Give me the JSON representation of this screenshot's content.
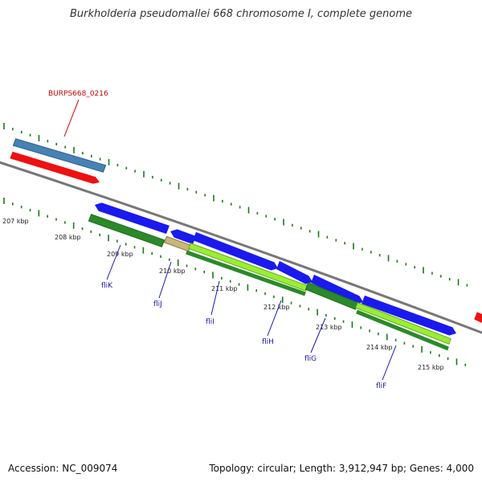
{
  "title": "Burkholderia pseudomallei 668 chromosome I, complete genome",
  "footer": {
    "accession": "Accession: NC_009074",
    "topology": "Topology: circular; Length: 3,912,947 bp; Genes: 4,000"
  },
  "colors": {
    "backbone": "#777777",
    "tick": "#1a7a1a",
    "cds_forward": "#1a1aee",
    "cds_reverse": "#ee1111",
    "gene_reverse": "#4682b4",
    "gene_forward_dark": "#2a8a2a",
    "gene_forward_light": "#99ee33",
    "label_forward": "#1a1ab0",
    "label_reverse": "#cc0000"
  },
  "scale_labels": [
    "207 kbp",
    "208 kbp",
    "209 kbp",
    "210 kbp",
    "211 kbp",
    "212 kbp",
    "213 kbp",
    "214 kbp",
    "215 kbp"
  ],
  "gene_labels": [
    {
      "name": "BURPS668_0216",
      "strand": "reverse"
    },
    {
      "name": "fliK",
      "strand": "forward"
    },
    {
      "name": "fliJ",
      "strand": "forward"
    },
    {
      "name": "fliI",
      "strand": "forward"
    },
    {
      "name": "fliH",
      "strand": "forward"
    },
    {
      "name": "fliG",
      "strand": "forward"
    },
    {
      "name": "fliF",
      "strand": "forward"
    }
  ]
}
